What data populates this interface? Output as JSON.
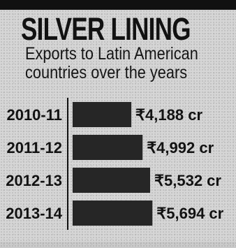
{
  "chart_data": {
    "type": "bar",
    "orientation": "horizontal",
    "title": "SILVER LINING",
    "subtitle_lines": [
      "Exports to Latin American",
      "countries over the years"
    ],
    "categories": [
      "2010-11",
      "2011-12",
      "2012-13",
      "2013-14"
    ],
    "values": [
      4188,
      4992,
      5532,
      5694
    ],
    "data_labels": [
      "₹4,188 cr",
      "₹4,992 cr",
      "₹5,532 cr",
      "₹5,694 cr"
    ],
    "bar_color": "#262626",
    "axis_color": "#111111",
    "grid": false,
    "legend": "none"
  }
}
